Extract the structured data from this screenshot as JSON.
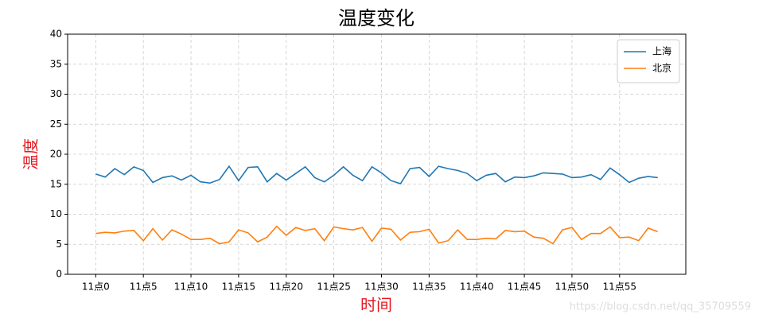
{
  "chart_data": {
    "type": "line",
    "title": "温度变化",
    "x_label": "时间",
    "y_label": "温度",
    "watermark": "https://blog.csdn.net/qq_35709559",
    "categories": [
      "11点0",
      null,
      null,
      null,
      null,
      "11点5",
      null,
      null,
      null,
      null,
      "11点10",
      null,
      null,
      null,
      null,
      "11点15",
      null,
      null,
      null,
      null,
      "11点20",
      null,
      null,
      null,
      null,
      "11点25",
      null,
      null,
      null,
      null,
      "11点30",
      null,
      null,
      null,
      null,
      "11点35",
      null,
      null,
      null,
      null,
      "11点40",
      null,
      null,
      null,
      null,
      "11点45",
      null,
      null,
      null,
      null,
      "11点50",
      null,
      null,
      null,
      null,
      "11点55",
      null,
      null,
      null,
      null
    ],
    "series": [
      {
        "name": "上海",
        "color": "#1f77b4",
        "values": [
          16.7,
          16.2,
          17.6,
          16.6,
          17.9,
          17.3,
          15.3,
          16.1,
          16.4,
          15.7,
          16.5,
          15.4,
          15.2,
          15.8,
          18.0,
          15.6,
          17.8,
          17.9,
          15.4,
          16.8,
          15.7,
          16.8,
          17.9,
          16.1,
          15.4,
          16.5,
          17.9,
          16.5,
          15.6,
          17.9,
          16.9,
          15.6,
          15.1,
          17.6,
          17.8,
          16.3,
          18.0,
          17.6,
          17.3,
          16.8,
          15.6,
          16.5,
          16.8,
          15.4,
          16.2,
          16.1,
          16.4,
          16.9,
          16.8,
          16.7,
          16.1,
          16.2,
          16.6,
          15.8,
          17.7,
          16.6,
          15.3,
          16.0,
          16.3,
          16.1
        ]
      },
      {
        "name": "北京",
        "color": "#ff7f0e",
        "values": [
          6.8,
          7.0,
          6.9,
          7.2,
          7.3,
          5.6,
          7.6,
          5.7,
          7.4,
          6.7,
          5.8,
          5.8,
          6.0,
          5.1,
          5.4,
          7.4,
          6.9,
          5.4,
          6.2,
          8.0,
          6.5,
          7.8,
          7.3,
          7.6,
          5.6,
          7.9,
          7.6,
          7.4,
          7.8,
          5.5,
          7.7,
          7.5,
          5.7,
          7.0,
          7.1,
          7.5,
          5.2,
          5.6,
          7.4,
          5.8,
          5.8,
          6.0,
          5.9,
          7.3,
          7.1,
          7.2,
          6.2,
          6.0,
          5.1,
          7.4,
          7.8,
          5.8,
          6.8,
          6.8,
          7.9,
          6.1,
          6.2,
          5.6,
          7.7,
          7.1
        ]
      }
    ],
    "ylim": [
      0,
      40
    ],
    "yticks": [
      0,
      5,
      10,
      15,
      20,
      25,
      30,
      35,
      40
    ],
    "grid": true,
    "legend": "upper right"
  }
}
